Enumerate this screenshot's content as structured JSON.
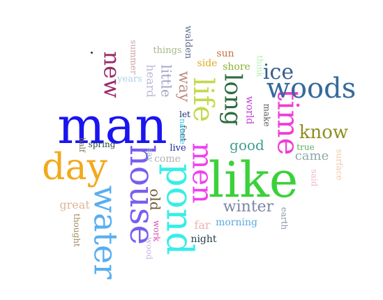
{
  "words": [
    {
      "text": "man",
      "color": "#1a14f0",
      "rotate": 0
    },
    {
      "text": "like",
      "color": "#3bd13b",
      "rotate": 0
    },
    {
      "text": "house",
      "color": "#7a5cf0",
      "rotate": 90
    },
    {
      "text": "pond",
      "color": "#37eee8",
      "rotate": 90
    },
    {
      "text": "day",
      "color": "#f2a91a",
      "rotate": 0
    },
    {
      "text": "water",
      "color": "#58aef0",
      "rotate": 90
    },
    {
      "text": "life",
      "color": "#c4d94b",
      "rotate": 90
    },
    {
      "text": "men",
      "color": "#f03ff0",
      "rotate": 90
    },
    {
      "text": "time",
      "color": "#f03cd6",
      "rotate": 90
    },
    {
      "text": "woods",
      "color": "#356a9a",
      "rotate": 0
    },
    {
      "text": "long",
      "color": "#2f6c40",
      "rotate": 90
    },
    {
      "text": "new",
      "color": "#9a2b68",
      "rotate": 90
    },
    {
      "text": "ice",
      "color": "#355e8e",
      "rotate": 0
    },
    {
      "text": "know",
      "color": "#8e8e20",
      "rotate": 0
    },
    {
      "text": "winter",
      "color": "#7a86a2",
      "rotate": 0
    },
    {
      "text": "good",
      "color": "#3e9e8e",
      "rotate": 0
    },
    {
      "text": "way",
      "color": "#bc9080",
      "rotate": 90
    },
    {
      "text": "little",
      "color": "#a3a3c9",
      "rotate": 90
    },
    {
      "text": "old",
      "color": "#6b5a35",
      "rotate": 90
    },
    {
      "text": "heard",
      "color": "#b7b7d9",
      "rotate": 90
    },
    {
      "text": "came",
      "color": "#8ea8a8",
      "rotate": 0
    },
    {
      "text": "great",
      "color": "#e0b493",
      "rotate": 0
    },
    {
      "text": "far",
      "color": "#f2b0b0",
      "rotate": 0
    },
    {
      "text": "morning",
      "color": "#58aae0",
      "rotate": 0
    },
    {
      "text": "night",
      "color": "#1e3a4d",
      "rotate": 0
    },
    {
      "text": "world",
      "color": "#c23ad8",
      "rotate": 90
    },
    {
      "text": "make",
      "color": "#5a5a5a",
      "rotate": 90
    },
    {
      "text": "think",
      "color": "#b4f0b4",
      "rotate": 90
    },
    {
      "text": "shore",
      "color": "#88b030",
      "rotate": 0
    },
    {
      "text": "side",
      "color": "#e0a820",
      "rotate": 0
    },
    {
      "text": "sun",
      "color": "#c87040",
      "rotate": 0
    },
    {
      "text": "things",
      "color": "#a8b888",
      "rotate": 0
    },
    {
      "text": "walden",
      "color": "#5a6a8a",
      "rotate": 90
    },
    {
      "text": "summer",
      "color": "#c8a0a0",
      "rotate": 90
    },
    {
      "text": "years",
      "color": "#a8d4e8",
      "rotate": 0
    },
    {
      "text": "let",
      "color": "#1a2a6a",
      "rotate": 0
    },
    {
      "text": "feet",
      "color": "#3a4a5a",
      "rotate": 90
    },
    {
      "text": "nature",
      "color": "#37c8f0",
      "rotate": 90
    },
    {
      "text": "live",
      "color": "#1a2aa0",
      "rotate": 0
    },
    {
      "text": "come",
      "color": "#b0b0b0",
      "rotate": 0
    },
    {
      "text": "say",
      "color": "#9ab0c8",
      "rotate": 90
    },
    {
      "text": "spring",
      "color": "#2a4a3a",
      "rotate": 0
    },
    {
      "text": "half",
      "color": "#7a6a4a",
      "rotate": 90
    },
    {
      "text": "true",
      "color": "#58b058",
      "rotate": 0
    },
    {
      "text": "surface",
      "color": "#f0c8a0",
      "rotate": 90
    },
    {
      "text": "said",
      "color": "#f0b4c8",
      "rotate": 90
    },
    {
      "text": "earth",
      "color": "#8a9aaa",
      "rotate": 90
    },
    {
      "text": "work",
      "color": "#d848b0",
      "rotate": 90
    },
    {
      "text": "wood",
      "color": "#c8b4e0",
      "rotate": 90
    },
    {
      "text": "thought",
      "color": "#9a8a5a",
      "rotate": 90
    }
  ]
}
